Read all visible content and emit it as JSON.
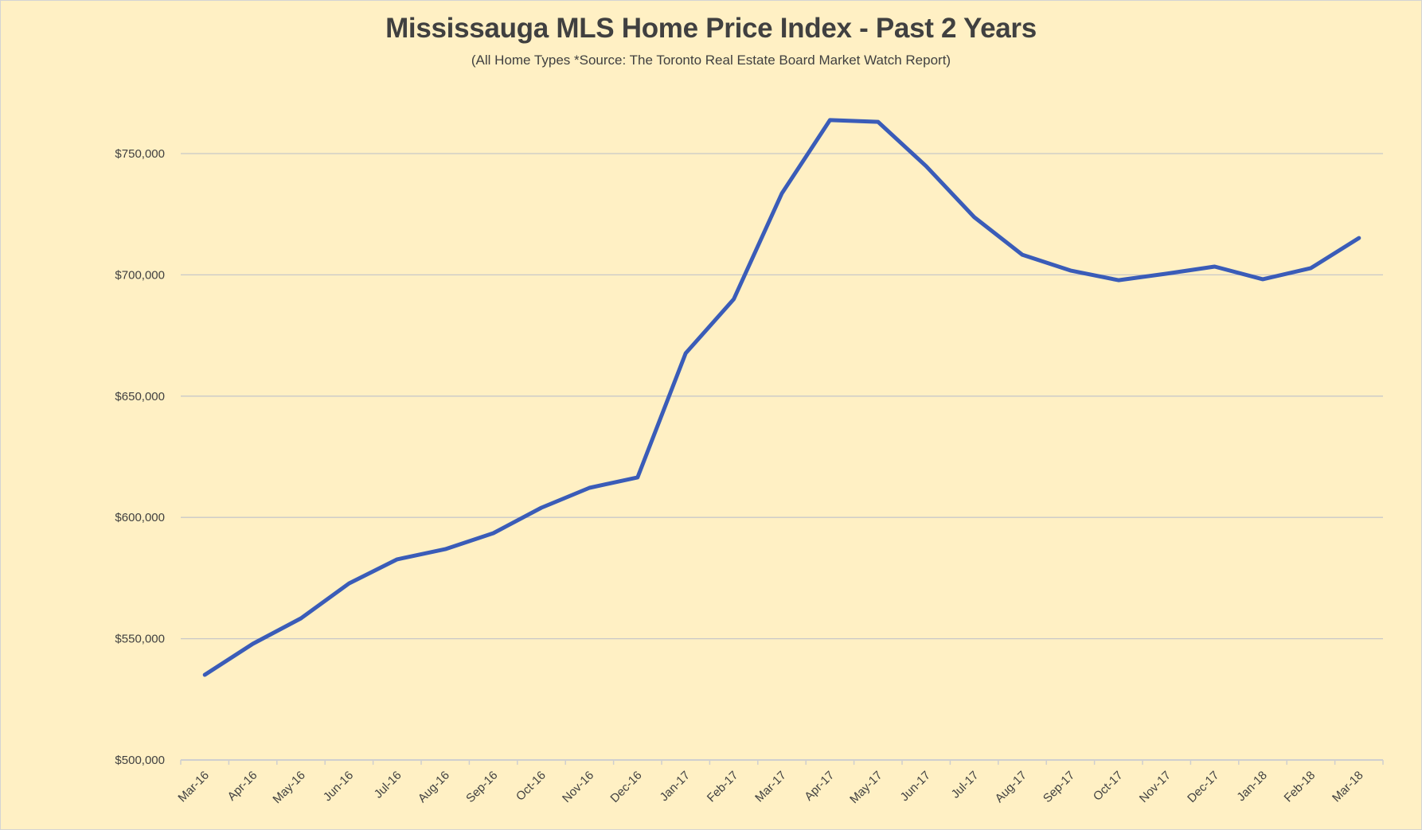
{
  "chart_data": {
    "type": "line",
    "title": "Mississauga MLS Home Price Index - Past 2 Years",
    "subtitle": "(All Home Types *Source: The Toronto Real Estate Board Market Watch Report)",
    "xlabel": "",
    "ylabel": "",
    "ylim": [
      500000,
      775000
    ],
    "y_ticks": [
      500000,
      550000,
      600000,
      650000,
      700000,
      750000
    ],
    "y_tick_labels": [
      "$500,000",
      "$550,000",
      "$600,000",
      "$650,000",
      "$700,000",
      "$750,000"
    ],
    "grid": true,
    "legend": "none",
    "categories": [
      "Mar-16",
      "Apr-16",
      "May-16",
      "Jun-16",
      "Jul-16",
      "Aug-16",
      "Sep-16",
      "Oct-16",
      "Nov-16",
      "Dec-16",
      "Jan-17",
      "Feb-17",
      "Mar-17",
      "Apr-17",
      "May-17",
      "Jun-17",
      "Jul-17",
      "Aug-17",
      "Sep-17",
      "Oct-17",
      "Nov-17",
      "Dec-17",
      "Jan-18",
      "Feb-18",
      "Mar-18"
    ],
    "series": [
      {
        "name": "Home Price Index",
        "color": "#3a5cb8",
        "values": [
          535100,
          547900,
          558400,
          572800,
          582700,
          586900,
          593500,
          604000,
          612200,
          616500,
          667700,
          690000,
          733600,
          763800,
          763100,
          744800,
          723800,
          708300,
          701800,
          697800,
          700500,
          703400,
          698200,
          702800,
          715200
        ]
      }
    ]
  },
  "colors": {
    "background": "#fff0c4",
    "gridline": "#c8c8c8",
    "text": "#404040",
    "line": "#3a5cb8"
  }
}
